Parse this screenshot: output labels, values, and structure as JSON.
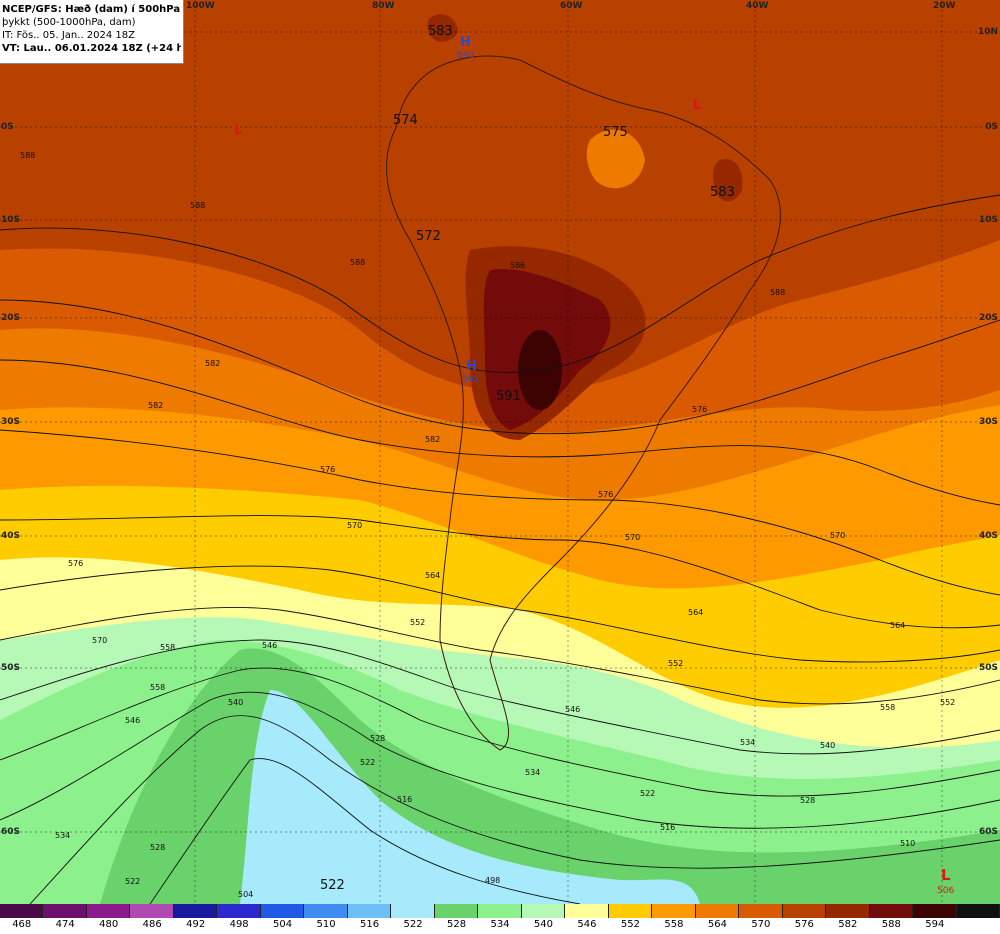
{
  "header": {
    "line1": "NCEP/GFS: Hæð (dam) í 500hPa og",
    "line2": "þykkt (500-1000hPa, dam)",
    "line3": "IT: Fös.. 05. Jan.. 2024 18Z",
    "line4": "VT: Lau.. 06.01.2024 18Z (+24 h)"
  },
  "lon_labels": [
    "100W",
    "80W",
    "60W",
    "40W",
    "20W"
  ],
  "lat_labels": [
    "10N",
    "0S",
    "10S",
    "20S",
    "30S",
    "40S",
    "50S",
    "60S"
  ],
  "centers": [
    {
      "type": "H",
      "value": "590"
    },
    {
      "type": "H",
      "value": "592"
    },
    {
      "type": "L",
      "value": "506"
    },
    {
      "type": "L",
      "value": ""
    },
    {
      "type": "L",
      "value": ""
    }
  ],
  "thickness_labels": [
    "583",
    "574",
    "575",
    "583",
    "572",
    "591",
    "522"
  ],
  "height_contour_labels": [
    "588",
    "588",
    "588",
    "588",
    "586",
    "582",
    "582",
    "582",
    "576",
    "576",
    "576",
    "576",
    "570",
    "570",
    "570",
    "570",
    "564",
    "564",
    "564",
    "558",
    "558",
    "558",
    "552",
    "552",
    "552",
    "546",
    "546",
    "546",
    "540",
    "540",
    "534",
    "534",
    "534",
    "528",
    "528",
    "528",
    "522",
    "522",
    "522",
    "516",
    "516",
    "510",
    "504",
    "498"
  ],
  "colorbar": {
    "labels": [
      "468",
      "474",
      "480",
      "486",
      "492",
      "498",
      "504",
      "510",
      "516",
      "522",
      "528",
      "534",
      "540",
      "546",
      "552",
      "558",
      "564",
      "570",
      "576",
      "582",
      "588",
      "594"
    ],
    "colors": [
      "#4a0a4a",
      "#6d0f6d",
      "#8c1a8c",
      "#b04ab0",
      "#1a1aa0",
      "#2a2ad0",
      "#1e5ae6",
      "#3f8cf0",
      "#6ebef8",
      "#a6eafc",
      "#6ad26a",
      "#8cf08c",
      "#b6f8b6",
      "#ffff99",
      "#ffcc00",
      "#ff9900",
      "#ee7a00",
      "#d95a00",
      "#b84100",
      "#962800",
      "#730b0b",
      "#3d0202",
      "#101010"
    ]
  }
}
